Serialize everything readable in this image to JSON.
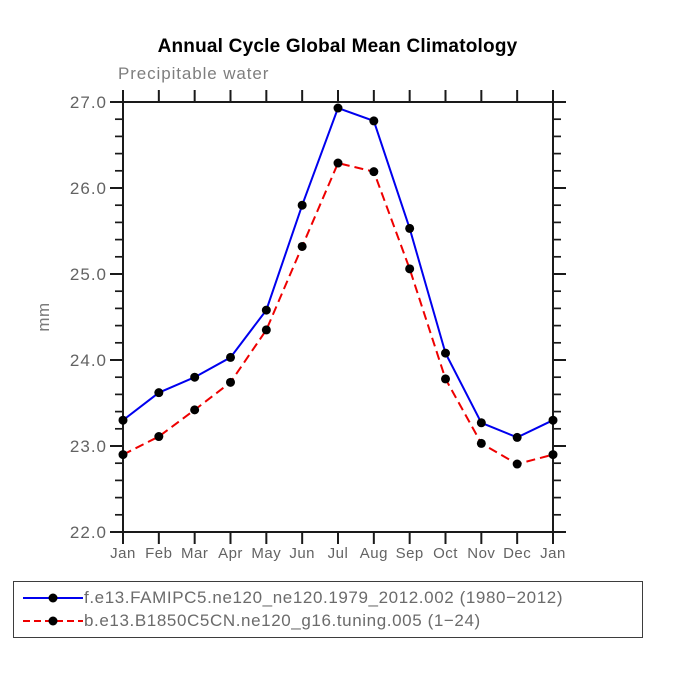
{
  "page": {
    "background": "#ffffff"
  },
  "chart_data": {
    "type": "line",
    "title": "Annual Cycle Global Mean Climatology",
    "subtitle": "Precipitable water",
    "ylabel": "mm",
    "xlabel": "",
    "categories": [
      "Jan",
      "Feb",
      "Mar",
      "Apr",
      "May",
      "Jun",
      "Jul",
      "Aug",
      "Sep",
      "Oct",
      "Nov",
      "Dec",
      "Jan"
    ],
    "ylim": [
      22.0,
      27.0
    ],
    "y_major_ticks": [
      22.0,
      23.0,
      24.0,
      25.0,
      26.0,
      27.0
    ],
    "y_tick_labels": [
      "22.0",
      "23.0",
      "24.0",
      "25.0",
      "26.0",
      "27.0"
    ],
    "y_minor_step": 0.2,
    "grid": false,
    "legend_position": "bottom",
    "axis_color": "#1a1a1a",
    "tick_label_color": "#636363",
    "marker_radius": 4.5,
    "series": [
      {
        "name": "f.e13.FAMIPC5.ne120_ne120.1979_2012.002 (1980−2012)",
        "color": "#0000ee",
        "style": "solid",
        "marker": "circle",
        "marker_color": "#000000",
        "values": [
          23.3,
          23.62,
          23.8,
          24.03,
          24.58,
          25.8,
          26.93,
          26.78,
          25.53,
          24.08,
          23.27,
          23.1,
          23.3
        ]
      },
      {
        "name": "b.e13.B1850C5CN.ne120_g16.tuning.005 (1−24)",
        "color": "#ee0000",
        "style": "dashed",
        "marker": "circle",
        "marker_color": "#000000",
        "values": [
          22.9,
          23.11,
          23.42,
          23.74,
          24.35,
          25.32,
          26.29,
          26.19,
          25.06,
          23.78,
          23.03,
          22.79,
          22.9
        ]
      }
    ]
  }
}
